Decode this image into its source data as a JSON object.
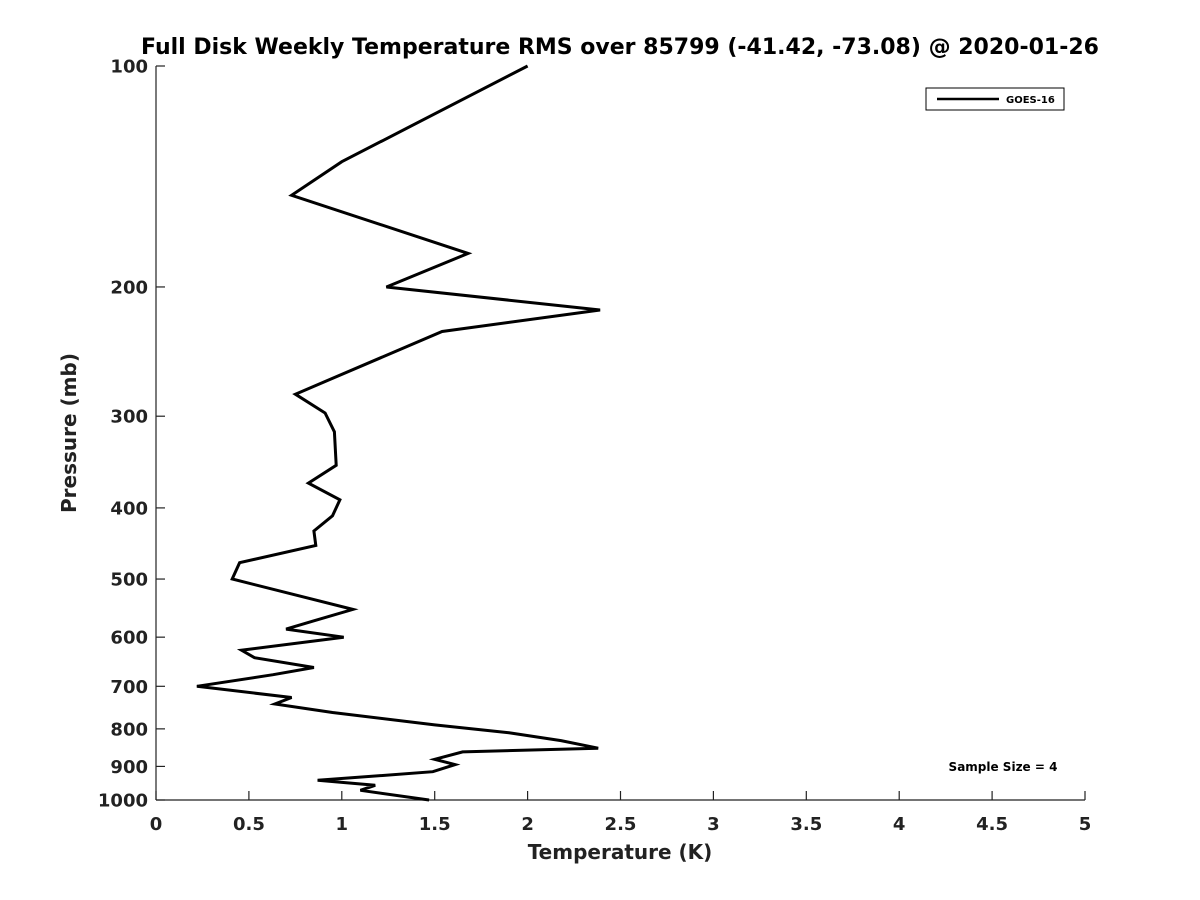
{
  "chart_data": {
    "type": "line",
    "title": "Full Disk Weekly Temperature RMS over 85799 (-41.42, -73.08) @ 2020-01-26",
    "xlabel": "Temperature (K)",
    "ylabel": "Pressure (mb)",
    "xlim": [
      0,
      5
    ],
    "ylim": [
      1000,
      100
    ],
    "y_scale": "log",
    "y_inverted": true,
    "grid": false,
    "x_ticks": [
      "0",
      "0.5",
      "1",
      "1.5",
      "2",
      "2.5",
      "3",
      "3.5",
      "4",
      "4.5",
      "5"
    ],
    "y_ticks": [
      "100",
      "200",
      "300",
      "400",
      "500",
      "600",
      "700",
      "800",
      "900",
      "1000"
    ],
    "legend": {
      "position": "top-right",
      "entries": [
        "GOES-16"
      ]
    },
    "annotation": "Sample Size = 4",
    "series": [
      {
        "name": "GOES-16",
        "color": "#000000",
        "points": [
          [
            2.0,
            100
          ],
          [
            1.0,
            135
          ],
          [
            0.73,
            150
          ],
          [
            1.68,
            180
          ],
          [
            1.24,
            200
          ],
          [
            2.39,
            215
          ],
          [
            1.54,
            230
          ],
          [
            0.75,
            280
          ],
          [
            0.91,
            297
          ],
          [
            0.96,
            315
          ],
          [
            0.97,
            350
          ],
          [
            0.82,
            370
          ],
          [
            0.99,
            390
          ],
          [
            0.95,
            410
          ],
          [
            0.85,
            430
          ],
          [
            0.86,
            450
          ],
          [
            0.45,
            475
          ],
          [
            0.41,
            500
          ],
          [
            1.06,
            550
          ],
          [
            0.85,
            570
          ],
          [
            0.7,
            585
          ],
          [
            1.01,
            600
          ],
          [
            0.46,
            625
          ],
          [
            0.53,
            640
          ],
          [
            0.85,
            660
          ],
          [
            0.63,
            675
          ],
          [
            0.22,
            700
          ],
          [
            0.73,
            725
          ],
          [
            0.64,
            740
          ],
          [
            0.95,
            760
          ],
          [
            1.5,
            790
          ],
          [
            1.9,
            810
          ],
          [
            2.18,
            830
          ],
          [
            2.38,
            850
          ],
          [
            1.65,
            860
          ],
          [
            1.5,
            880
          ],
          [
            1.61,
            895
          ],
          [
            1.49,
            915
          ],
          [
            0.87,
            940
          ],
          [
            1.18,
            955
          ],
          [
            1.1,
            970
          ],
          [
            1.47,
            1000
          ]
        ]
      }
    ]
  }
}
